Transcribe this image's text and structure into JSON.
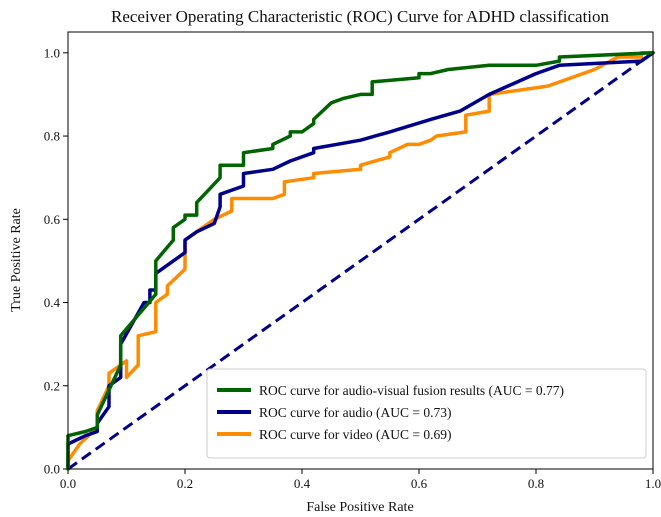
{
  "chart_data": {
    "type": "line",
    "title": "Receiver Operating Characteristic (ROC) Curve for ADHD classification",
    "xlabel": "False Positive Rate",
    "ylabel": "True Positive Rate",
    "xlim": [
      0.0,
      1.0
    ],
    "ylim": [
      0.0,
      1.05
    ],
    "x_ticks": [
      "0.0",
      "0.2",
      "0.4",
      "0.6",
      "0.8",
      "1.0"
    ],
    "y_ticks": [
      "0.0",
      "0.2",
      "0.4",
      "0.6",
      "0.8",
      "1.0"
    ],
    "grid": false,
    "legend_position": "bottom-right",
    "series": [
      {
        "name": "ROC curve for audio-visual fusion results  (AUC = 0.77)",
        "color": "#006400",
        "x": [
          0,
          0,
          0.03,
          0.05,
          0.05,
          0.09,
          0.09,
          0.15,
          0.15,
          0.18,
          0.18,
          0.2,
          0.2,
          0.22,
          0.22,
          0.24,
          0.26,
          0.26,
          0.3,
          0.3,
          0.35,
          0.35,
          0.38,
          0.38,
          0.4,
          0.42,
          0.42,
          0.45,
          0.45,
          0.47,
          0.5,
          0.52,
          0.52,
          0.6,
          0.6,
          0.62,
          0.65,
          0.72,
          0.8,
          0.84,
          0.84,
          1.0
        ],
        "y": [
          0,
          0.08,
          0.09,
          0.1,
          0.13,
          0.25,
          0.32,
          0.42,
          0.5,
          0.55,
          0.58,
          0.6,
          0.61,
          0.61,
          0.64,
          0.67,
          0.7,
          0.73,
          0.73,
          0.76,
          0.77,
          0.78,
          0.8,
          0.81,
          0.81,
          0.83,
          0.84,
          0.88,
          0.88,
          0.89,
          0.9,
          0.9,
          0.93,
          0.94,
          0.95,
          0.95,
          0.96,
          0.97,
          0.97,
          0.98,
          0.99,
          1.0
        ]
      },
      {
        "name": "ROC curve for audio (AUC = 0.73)",
        "color": "#00008b",
        "x": [
          0,
          0,
          0.03,
          0.05,
          0.05,
          0.07,
          0.07,
          0.09,
          0.09,
          0.13,
          0.14,
          0.14,
          0.15,
          0.15,
          0.2,
          0.2,
          0.22,
          0.25,
          0.26,
          0.26,
          0.3,
          0.3,
          0.35,
          0.38,
          0.42,
          0.42,
          0.5,
          0.55,
          0.62,
          0.67,
          0.72,
          0.8,
          0.84,
          0.98,
          1.0
        ],
        "y": [
          0,
          0.06,
          0.08,
          0.09,
          0.11,
          0.15,
          0.2,
          0.22,
          0.3,
          0.4,
          0.4,
          0.43,
          0.43,
          0.47,
          0.52,
          0.55,
          0.57,
          0.59,
          0.63,
          0.66,
          0.68,
          0.71,
          0.72,
          0.74,
          0.76,
          0.77,
          0.79,
          0.81,
          0.84,
          0.86,
          0.9,
          0.95,
          0.97,
          0.98,
          1.0
        ]
      },
      {
        "name": "ROC curve  for video (AUC = 0.69)",
        "color": "#ff8c00",
        "x": [
          0,
          0,
          0.02,
          0.05,
          0.05,
          0.07,
          0.07,
          0.1,
          0.1,
          0.12,
          0.12,
          0.15,
          0.15,
          0.17,
          0.17,
          0.2,
          0.2,
          0.25,
          0.28,
          0.28,
          0.35,
          0.37,
          0.37,
          0.42,
          0.42,
          0.5,
          0.5,
          0.55,
          0.55,
          0.58,
          0.6,
          0.62,
          0.63,
          0.68,
          0.68,
          0.72,
          0.72,
          0.82,
          0.9,
          0.94,
          0.98,
          0.98,
          1.0
        ],
        "y": [
          0,
          0.02,
          0.06,
          0.1,
          0.14,
          0.2,
          0.23,
          0.26,
          0.22,
          0.25,
          0.32,
          0.33,
          0.4,
          0.42,
          0.44,
          0.48,
          0.55,
          0.6,
          0.62,
          0.65,
          0.65,
          0.66,
          0.69,
          0.7,
          0.71,
          0.72,
          0.73,
          0.75,
          0.76,
          0.78,
          0.78,
          0.79,
          0.8,
          0.81,
          0.85,
          0.86,
          0.9,
          0.92,
          0.96,
          0.99,
          0.99,
          1.0,
          1.0
        ]
      }
    ],
    "reference_line": {
      "x": [
        0,
        1
      ],
      "y": [
        0,
        1
      ],
      "color": "#00008b",
      "style": "dashed"
    }
  }
}
